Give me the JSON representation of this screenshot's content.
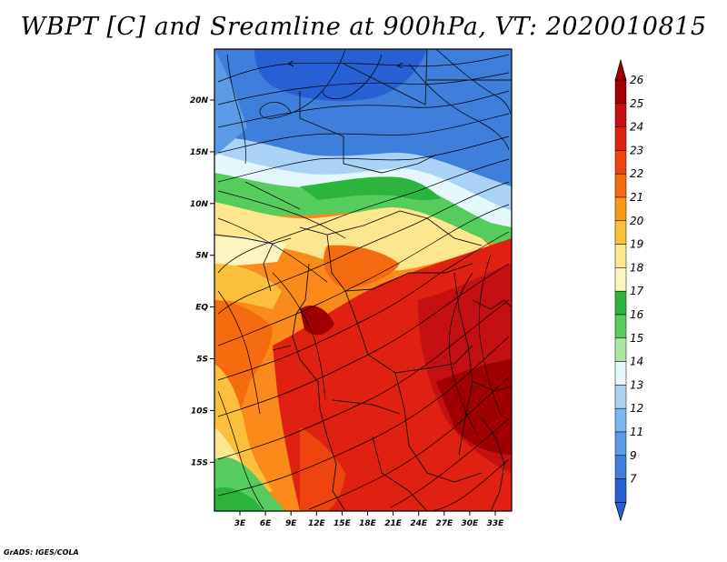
{
  "title": "WBPT [C] and Sreamline at 900hPa, VT: 2020010815",
  "credit": "GrADS: IGES/COLA",
  "map": {
    "lat_labels": [
      "20N",
      "15N",
      "10N",
      "5N",
      "EQ",
      "5S",
      "10S",
      "15S"
    ],
    "lon_labels": [
      "3E",
      "6E",
      "9E",
      "12E",
      "15E",
      "18E",
      "21E",
      "24E",
      "27E",
      "30E",
      "33E"
    ],
    "fields": [
      "wet-bulb potential temperature shading",
      "900hPa streamlines",
      "country borders"
    ]
  },
  "colorbar": {
    "labels": [
      "26",
      "25",
      "24",
      "23",
      "22",
      "21",
      "20",
      "19",
      "18",
      "17",
      "16",
      "15",
      "14",
      "13",
      "12",
      "11",
      "9",
      "7"
    ],
    "colors": [
      "#a00000",
      "#c41010",
      "#e02010",
      "#ee4410",
      "#f56c10",
      "#fa9a14",
      "#fbbf3c",
      "#fde68e",
      "#fdf5c0",
      "#2db43c",
      "#55cc5c",
      "#a8e8a0",
      "#e4f7fa",
      "#aad2f5",
      "#7ab6f0",
      "#5a9ae6",
      "#3e7fdc",
      "#2660d2"
    ]
  }
}
